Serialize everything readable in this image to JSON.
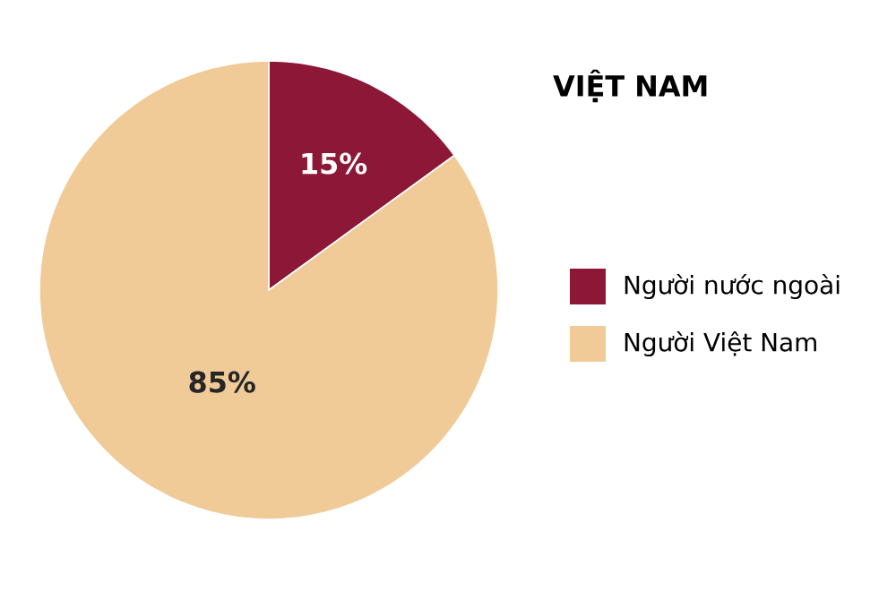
{
  "chart_data": {
    "type": "pie",
    "title": "VIỆT NAM",
    "categories": [
      "Người nước ngoài",
      "Người Việt Nam"
    ],
    "values": [
      15,
      85
    ],
    "colors": [
      "#8c1737",
      "#f0cb98"
    ],
    "value_labels": [
      "15%",
      "85%"
    ],
    "legend": "right"
  }
}
